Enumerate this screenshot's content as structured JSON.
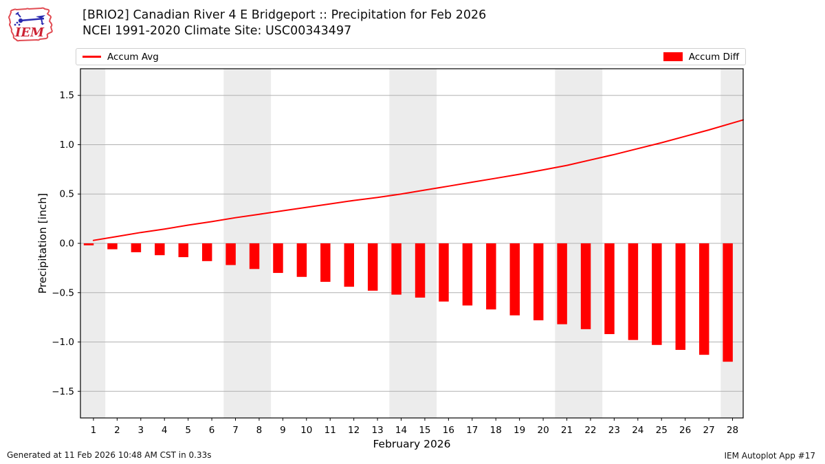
{
  "header": {
    "title_line1": "[BRIO2] Canadian River 4 E Bridgeport :: Precipitation for Feb 2026",
    "title_line2": "NCEI 1991-2020 Climate Site: USC00343497",
    "logo_text": "IEM"
  },
  "legend": {
    "avg_label": "Accum Avg",
    "diff_label": "Accum Diff",
    "line_color": "#ff0000",
    "patch_color": "#ff0000"
  },
  "footer": {
    "generated": "Generated at 11 Feb 2026 10:48 AM CST in 0.33s",
    "app": "IEM Autoplot App #17"
  },
  "chart_data": {
    "type": "line+bar",
    "title": "[BRIO2] Canadian River 4 E Bridgeport :: Precipitation for Feb 2026",
    "subtitle": "NCEI 1991-2020 Climate Site: USC00343497",
    "xlabel": "February 2026",
    "ylabel": "Precipitation [inch]",
    "xlim": [
      0.45,
      28.45
    ],
    "ylim": [
      -1.77,
      1.77
    ],
    "yticks": [
      -1.5,
      -1.0,
      -0.5,
      0.0,
      0.5,
      1.0,
      1.5
    ],
    "xticks": [
      1,
      2,
      3,
      4,
      5,
      6,
      7,
      8,
      9,
      10,
      11,
      12,
      13,
      14,
      15,
      16,
      17,
      18,
      19,
      20,
      21,
      22,
      23,
      24,
      25,
      26,
      27,
      28
    ],
    "grid": "horizontal",
    "grid_color": "#b0b0b0",
    "weekend_band_color": "#ececec",
    "weekend_bands": [
      [
        0.45,
        1.5
      ],
      [
        6.5,
        8.5
      ],
      [
        13.5,
        15.5
      ],
      [
        20.5,
        22.5
      ],
      [
        27.5,
        28.45
      ]
    ],
    "legend_position": "top",
    "days": [
      1,
      2,
      3,
      4,
      5,
      6,
      7,
      8,
      9,
      10,
      11,
      12,
      13,
      14,
      15,
      16,
      17,
      18,
      19,
      20,
      21,
      22,
      23,
      24,
      25,
      26,
      27,
      28
    ],
    "series": [
      {
        "name": "Accum Avg",
        "type": "line",
        "color": "#ff0000",
        "line_width": 2,
        "extend_to_xmax": true,
        "values": [
          0.03,
          0.07,
          0.11,
          0.145,
          0.185,
          0.22,
          0.26,
          0.295,
          0.33,
          0.365,
          0.4,
          0.435,
          0.465,
          0.5,
          0.54,
          0.58,
          0.62,
          0.66,
          0.7,
          0.745,
          0.79,
          0.845,
          0.9,
          0.96,
          1.02,
          1.085,
          1.15,
          1.22
        ]
      },
      {
        "name": "Accum Diff",
        "type": "bar",
        "color": "#ff0000",
        "bar_width_days": 0.42,
        "bar_center_offset_days": -0.2,
        "values": [
          -0.02,
          -0.06,
          -0.09,
          -0.12,
          -0.14,
          -0.18,
          -0.22,
          -0.26,
          -0.3,
          -0.34,
          -0.39,
          -0.44,
          -0.48,
          -0.52,
          -0.55,
          -0.59,
          -0.63,
          -0.67,
          -0.73,
          -0.78,
          -0.82,
          -0.87,
          -0.92,
          -0.98,
          -1.03,
          -1.08,
          -1.13,
          -1.2
        ]
      }
    ]
  }
}
